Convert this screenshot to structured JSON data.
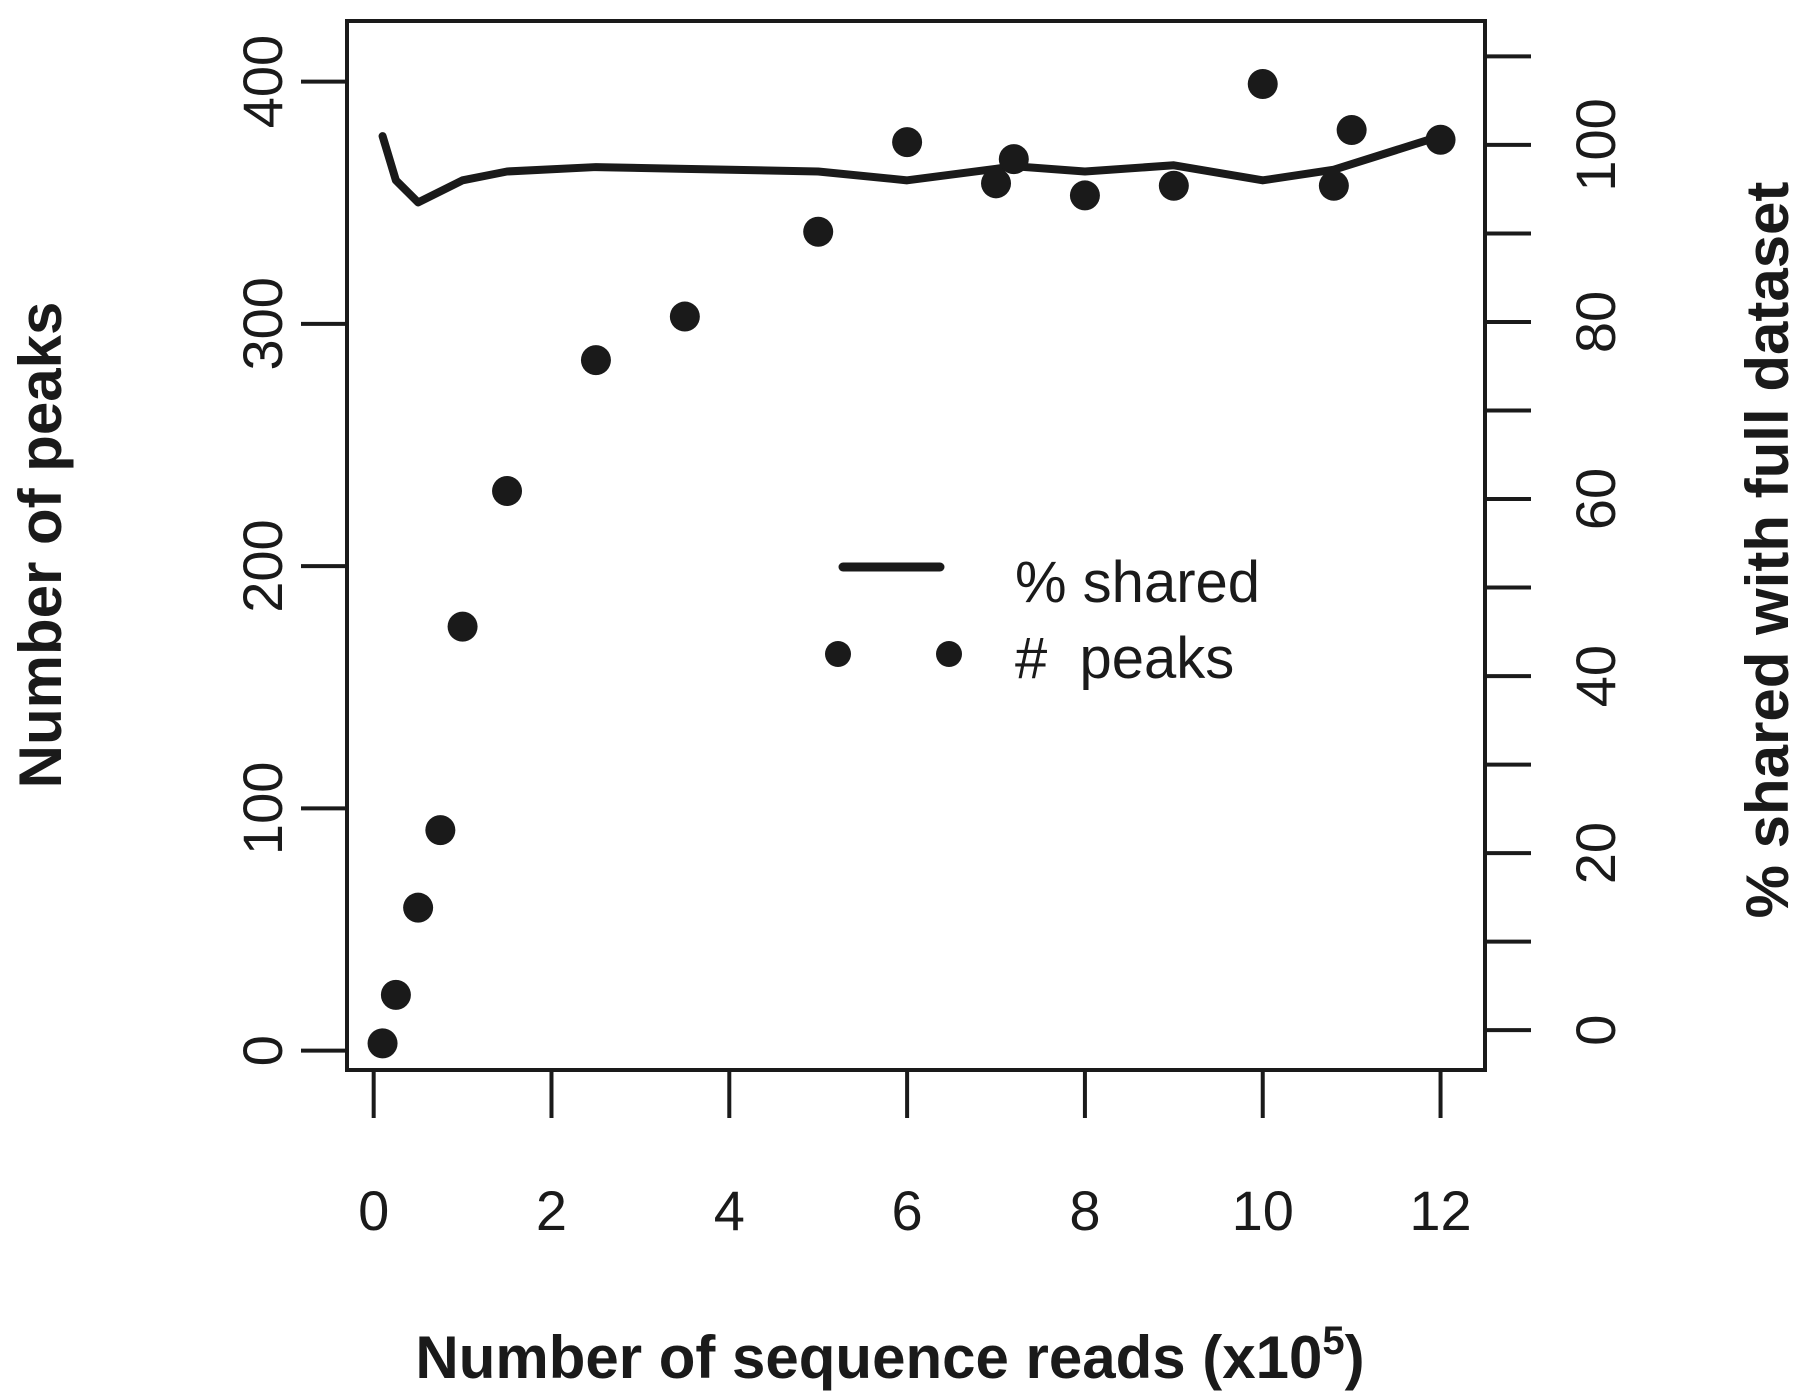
{
  "chart_data": {
    "type": "scatter",
    "x_axis": {
      "label_main": "Number of sequence reads (x10",
      "label_sup": "5",
      "label_close": ")",
      "range": [
        -0.3,
        12.5
      ],
      "ticks": [
        0,
        2,
        4,
        6,
        8,
        10,
        12
      ],
      "tick_labels": [
        "0",
        "2",
        "4",
        "6",
        "8",
        "10",
        "12"
      ]
    },
    "y_axis_left": {
      "label": "Number of peaks",
      "range": [
        -8,
        425
      ],
      "ticks": [
        0,
        100,
        200,
        300,
        400
      ],
      "tick_labels": [
        "0",
        "100",
        "200",
        "300",
        "400"
      ]
    },
    "y_axis_right": {
      "label": "% shared with full dataset",
      "range": [
        -4.5,
        114
      ],
      "ticks": [
        0,
        10,
        20,
        30,
        40,
        50,
        60,
        70,
        80,
        90,
        100,
        110
      ],
      "labeled_ticks": [
        0,
        20,
        40,
        60,
        80,
        100
      ],
      "tick_labels": [
        "0",
        "20",
        "40",
        "60",
        "80",
        "100"
      ]
    },
    "series": [
      {
        "name": "% shared",
        "kind": "line",
        "axis": "right",
        "color": "#1a1a1a",
        "x": [
          0.1,
          0.25,
          0.5,
          1.0,
          1.5,
          2.5,
          3.5,
          5.0,
          6.0,
          7.0,
          7.2,
          8.0,
          9.0,
          10.0,
          10.8,
          12.0
        ],
        "y": [
          101,
          96,
          93.5,
          96,
          97,
          97.5,
          97.3,
          97,
          96,
          97.3,
          97.6,
          97,
          97.7,
          96,
          97.2,
          101
        ]
      },
      {
        "name": "#  peaks",
        "kind": "points",
        "axis": "left",
        "color": "#1a1a1a",
        "x": [
          0.1,
          0.25,
          0.5,
          0.75,
          1.0,
          1.5,
          2.5,
          3.5,
          5.0,
          6.0,
          7.0,
          7.2,
          8.0,
          9.0,
          10.0,
          10.8,
          11.0,
          12.0
        ],
        "y": [
          3,
          23,
          59,
          91,
          175,
          231,
          285,
          303,
          338,
          375,
          358,
          368,
          353,
          357,
          399,
          357,
          380,
          376
        ]
      }
    ],
    "legend": {
      "placement": "center-right",
      "entries": [
        {
          "label": "% shared",
          "marker": "line"
        },
        {
          "label": "#  peaks",
          "marker": "points"
        }
      ]
    },
    "grid": false
  }
}
